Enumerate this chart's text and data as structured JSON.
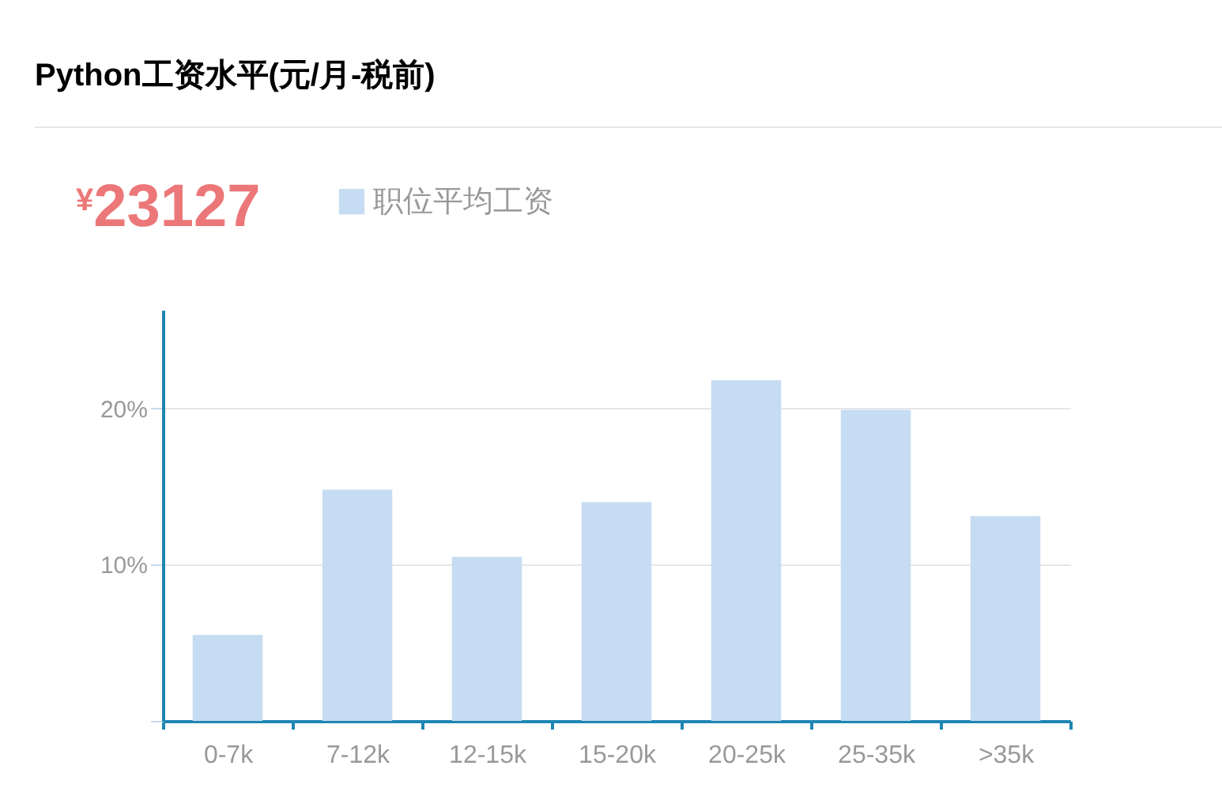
{
  "chart_data": {
    "type": "bar",
    "title": "Python工资水平(元/月-税前)",
    "annotations": [
      "¥23127"
    ],
    "categories": [
      "0-7k",
      "7-12k",
      "12-15k",
      "15-20k",
      "20-25k",
      "25-35k",
      ">35k"
    ],
    "series": [
      {
        "name": "职位平均工资",
        "color": "#c6dcf2",
        "values": [
          5.5,
          14.8,
          10.5,
          14.0,
          21.8,
          19.9,
          13.1
        ]
      }
    ],
    "ylim": [
      0,
      26.3
    ],
    "yticks": [
      {
        "value": 0,
        "label": null
      },
      {
        "value": 10,
        "label": "10%"
      },
      {
        "value": 20,
        "label": "20%"
      }
    ],
    "grid": "y",
    "legend": "top left"
  }
}
